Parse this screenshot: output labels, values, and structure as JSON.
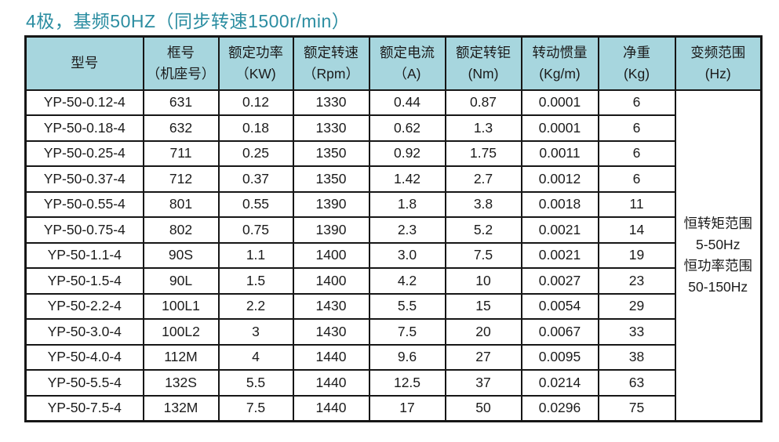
{
  "title": "4极，基频50HZ（同步转速1500r/min）",
  "colors": {
    "title_text": "#2b8da1",
    "header_bg": "#a7d6de",
    "border": "#161616",
    "cell_text": "#1b1b1b",
    "page_bg": "#ffffff"
  },
  "table": {
    "headers": [
      {
        "id": "model",
        "lines": [
          "型号"
        ]
      },
      {
        "id": "frame",
        "lines": [
          "框号",
          "（机座号）"
        ]
      },
      {
        "id": "power",
        "lines": [
          "额定功率",
          "（KW)"
        ]
      },
      {
        "id": "speed",
        "lines": [
          "额定转速",
          "（Rpm）"
        ]
      },
      {
        "id": "current",
        "lines": [
          "额定电流",
          "（A)"
        ]
      },
      {
        "id": "torque",
        "lines": [
          "额定转钜",
          "(Nm)"
        ]
      },
      {
        "id": "inertia",
        "lines": [
          "转动惯量",
          "(Kg/m)"
        ]
      },
      {
        "id": "weight",
        "lines": [
          "净重",
          "(Kg)"
        ]
      },
      {
        "id": "freq",
        "lines": [
          "变频范围",
          "(Hz)"
        ]
      }
    ],
    "rows": [
      [
        "YP-50-0.12-4",
        "631",
        "0.12",
        "1330",
        "0.44",
        "0.87",
        "0.0001",
        "6"
      ],
      [
        "YP-50-0.18-4",
        "632",
        "0.18",
        "1330",
        "0.62",
        "1.3",
        "0.0001",
        "6"
      ],
      [
        "YP-50-0.25-4",
        "711",
        "0.25",
        "1350",
        "0.92",
        "1.75",
        "0.0011",
        "6"
      ],
      [
        "YP-50-0.37-4",
        "712",
        "0.37",
        "1350",
        "1.42",
        "2.7",
        "0.0012",
        "6"
      ],
      [
        "YP-50-0.55-4",
        "801",
        "0.55",
        "1390",
        "1.8",
        "3.8",
        "0.0018",
        "11"
      ],
      [
        "YP-50-0.75-4",
        "802",
        "0.75",
        "1390",
        "2.3",
        "5.2",
        "0.0021",
        "14"
      ],
      [
        "YP-50-1.1-4",
        "90S",
        "1.1",
        "1400",
        "3.0",
        "7.5",
        "0.0021",
        "19"
      ],
      [
        "YP-50-1.5-4",
        "90L",
        "1.5",
        "1400",
        "4.2",
        "10",
        "0.0027",
        "23"
      ],
      [
        "YP-50-2.2-4",
        "100L1",
        "2.2",
        "1430",
        "5.5",
        "15",
        "0.0054",
        "29"
      ],
      [
        "YP-50-3.0-4",
        "100L2",
        "3",
        "1430",
        "7.5",
        "20",
        "0.0067",
        "33"
      ],
      [
        "YP-50-4.0-4",
        "112M",
        "4",
        "1440",
        "9.6",
        "27",
        "0.0095",
        "38"
      ],
      [
        "YP-50-5.5-4",
        "132S",
        "5.5",
        "1440",
        "12.5",
        "37",
        "0.0214",
        "63"
      ],
      [
        "YP-50-7.5-4",
        "132M",
        "7.5",
        "1440",
        "17",
        "50",
        "0.0296",
        "75"
      ]
    ],
    "merged_last_column": {
      "lines": [
        "恒转矩范围",
        "5-50Hz",
        "恒功率范围",
        "50-150Hz"
      ]
    }
  }
}
